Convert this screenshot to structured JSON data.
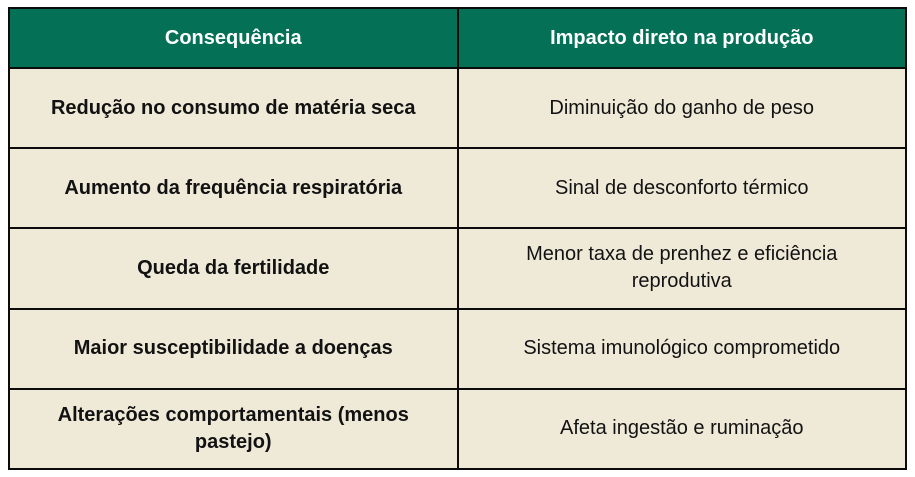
{
  "table": {
    "columns": [
      {
        "label": "Consequência"
      },
      {
        "label": "Impacto direto na produção"
      }
    ],
    "rows": [
      {
        "consequencia": "Redução no consumo de matéria seca",
        "impacto": "Diminuição do ganho de peso"
      },
      {
        "consequencia": "Aumento da frequência respiratória",
        "impacto": "Sinal de desconforto térmico"
      },
      {
        "consequencia": "Queda da fertilidade",
        "impacto": "Menor taxa de prenhez e eficiência reprodutiva"
      },
      {
        "consequencia": "Maior susceptibilidade a doenças",
        "impacto": "Sistema imunológico comprometido"
      },
      {
        "consequencia": "Alterações comportamentais (menos pastejo)",
        "impacto": "Afeta ingestão e ruminação"
      }
    ],
    "colors": {
      "header_bg": "#047157",
      "header_text": "#ffffff",
      "body_bg": "#EFE9D8",
      "body_text": "#121212",
      "border": "#0b0b0b",
      "page_bg": "#ffffff"
    }
  }
}
